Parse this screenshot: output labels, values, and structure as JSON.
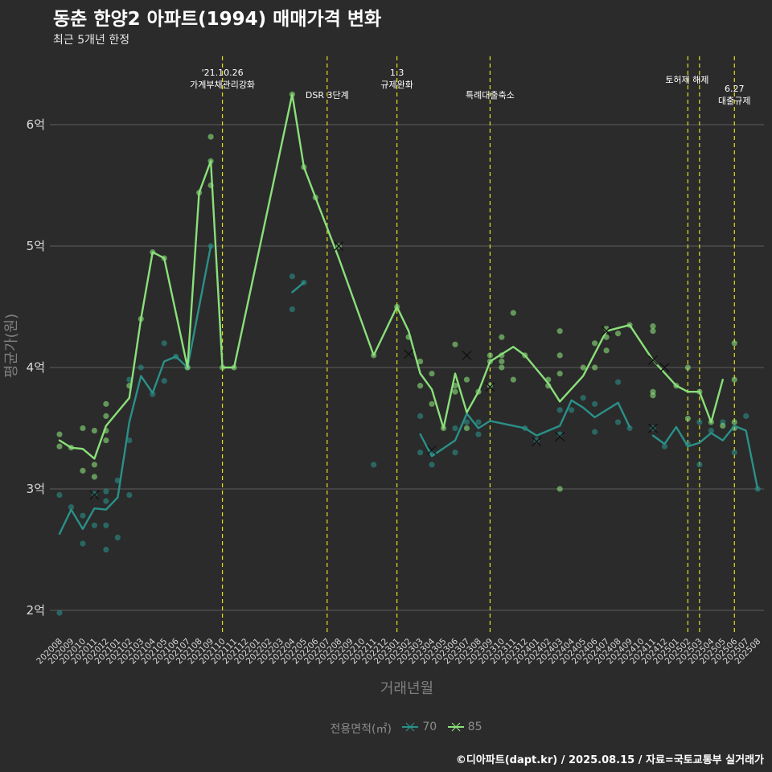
{
  "title": "동춘 한양2 아파트(1994) 매매가격 변화",
  "subtitle": "최근 5개년 한정",
  "caption": "©디아파트(dapt.kr) / 2025.08.15 / 자료=국토교통부 실거래가",
  "colors": {
    "background": "#2b2b2b",
    "grid": "#5c5c5c",
    "vline": "#e0e020",
    "series_70": "#2a9088",
    "series_85": "#8ae07a",
    "text": "#ffffff",
    "axis_text": "#d9d9d9",
    "axis_title": "#7f7f7f"
  },
  "legend": {
    "title": "전용면적(㎡)",
    "items": [
      {
        "label": "70",
        "color": "#2a9088"
      },
      {
        "label": "85",
        "color": "#8ae07a"
      }
    ]
  },
  "chart_data": {
    "type": "line",
    "title": "동춘 한양2 아파트(1994) 매매가격 변화",
    "subtitle": "최근 5개년 한정",
    "xlabel": "거래년월",
    "ylabel": "평균가(원)",
    "x": [
      "202008",
      "202009",
      "202010",
      "202011",
      "202012",
      "202101",
      "202102",
      "202103",
      "202104",
      "202105",
      "202106",
      "202107",
      "202108",
      "202109",
      "202110",
      "202111",
      "202112",
      "202201",
      "202202",
      "202203",
      "202204",
      "202205",
      "202206",
      "202207",
      "202208",
      "202209",
      "202210",
      "202211",
      "202212",
      "202301",
      "202302",
      "202303",
      "202304",
      "202305",
      "202306",
      "202307",
      "202308",
      "202309",
      "202310",
      "202311",
      "202312",
      "202401",
      "202402",
      "202403",
      "202404",
      "202405",
      "202406",
      "202407",
      "202408",
      "202409",
      "202410",
      "202411",
      "202412",
      "202501",
      "202502",
      "202503",
      "202504",
      "202505",
      "202506",
      "202507",
      "202508"
    ],
    "x_tick_labels": [
      "202008",
      "202009",
      "202010",
      "202011",
      "202012",
      "202101",
      "202102",
      "202103",
      "202104",
      "202105",
      "202106",
      "202107",
      "202108",
      "202109",
      "202110",
      "202111",
      "202112",
      "202201",
      "202202",
      "202203",
      "202204",
      "202205",
      "202206",
      "202207",
      "202208",
      "202209",
      "202210",
      "202211",
      "202212",
      "202301",
      "202302",
      "202303",
      "202304",
      "202305",
      "202306",
      "202307",
      "202308",
      "202309",
      "202310",
      "202311",
      "202312",
      "202401",
      "202402",
      "202403",
      "202404",
      "202405",
      "202406",
      "202407",
      "202408",
      "202409",
      "202410",
      "202411",
      "202412",
      "202501",
      "202502",
      "202503",
      "202504",
      "202505",
      "202506",
      "202507",
      "202508"
    ],
    "ylim": [
      1.8,
      6.7
    ],
    "y_ticks": [
      2,
      3,
      4,
      5,
      6
    ],
    "y_tick_labels": [
      "2억",
      "3억",
      "4억",
      "5억",
      "6억"
    ],
    "y_unit": "억원",
    "grid": "horizontal",
    "legend_position": "bottom",
    "series": [
      {
        "name": "70",
        "color": "#2a9088",
        "line": [
          [
            "202008",
            2.63
          ],
          [
            "202009",
            2.83
          ],
          [
            "202010",
            2.67
          ],
          [
            "202011",
            2.84
          ],
          [
            "202012",
            2.83
          ],
          [
            "202101",
            2.93
          ],
          [
            "202102",
            3.55
          ],
          [
            "202103",
            3.93
          ],
          [
            "202104",
            3.79
          ],
          [
            "202105",
            4.05
          ],
          [
            "202106",
            4.09
          ],
          [
            "202107",
            4.0
          ],
          [
            "202108",
            4.5
          ],
          [
            "202109",
            5.0
          ]
        ],
        "line2": [
          [
            "202204",
            4.62
          ],
          [
            "202205",
            4.7
          ]
        ],
        "line3": [
          [
            "202303",
            3.45
          ],
          [
            "202304",
            3.27
          ],
          [
            "202306",
            3.4
          ],
          [
            "202307",
            3.62
          ],
          [
            "202308",
            3.5
          ],
          [
            "202309",
            3.56
          ],
          [
            "202312",
            3.5
          ],
          [
            "202401",
            3.44
          ],
          [
            "202403",
            3.52
          ],
          [
            "202404",
            3.73
          ],
          [
            "202405",
            3.67
          ],
          [
            "202406",
            3.59
          ],
          [
            "202408",
            3.71
          ],
          [
            "202409",
            3.51
          ]
        ],
        "line4": [
          [
            "202411",
            3.44
          ],
          [
            "202412",
            3.37
          ],
          [
            "202501",
            3.51
          ],
          [
            "202502",
            3.35
          ],
          [
            "202503",
            3.38
          ],
          [
            "202504",
            3.46
          ],
          [
            "202505",
            3.4
          ],
          [
            "202506",
            3.52
          ],
          [
            "202507",
            3.48
          ],
          [
            "202508",
            3.0
          ]
        ],
        "points": [
          [
            "202008",
            2.95
          ],
          [
            "202008",
            1.98
          ],
          [
            "202009",
            2.85
          ],
          [
            "202010",
            2.78
          ],
          [
            "202010",
            2.55
          ],
          [
            "202011",
            2.96
          ],
          [
            "202011",
            2.7
          ],
          [
            "202012",
            2.98
          ],
          [
            "202012",
            2.9
          ],
          [
            "202012",
            2.7
          ],
          [
            "202012",
            2.5
          ],
          [
            "202101",
            3.07
          ],
          [
            "202101",
            2.6
          ],
          [
            "202102",
            3.9
          ],
          [
            "202102",
            3.4
          ],
          [
            "202102",
            2.95
          ],
          [
            "202103",
            4.0
          ],
          [
            "202104",
            3.78
          ],
          [
            "202105",
            4.2
          ],
          [
            "202105",
            3.89
          ],
          [
            "202106",
            4.09
          ],
          [
            "202107",
            4.0
          ],
          [
            "202109",
            5.0
          ],
          [
            "202204",
            4.75
          ],
          [
            "202204",
            4.48
          ],
          [
            "202205",
            4.7
          ],
          [
            "202211",
            3.2
          ],
          [
            "202303",
            3.6
          ],
          [
            "202303",
            3.3
          ],
          [
            "202304",
            3.2
          ],
          [
            "202304",
            3.3
          ],
          [
            "202306",
            3.3
          ],
          [
            "202306",
            3.5
          ],
          [
            "202307",
            3.55
          ],
          [
            "202308",
            3.45
          ],
          [
            "202308",
            3.55
          ],
          [
            "202312",
            3.5
          ],
          [
            "202401",
            3.4
          ],
          [
            "202403",
            3.45
          ],
          [
            "202403",
            3.65
          ],
          [
            "202404",
            3.65
          ],
          [
            "202405",
            3.75
          ],
          [
            "202406",
            3.7
          ],
          [
            "202406",
            3.47
          ],
          [
            "202408",
            3.55
          ],
          [
            "202408",
            3.88
          ],
          [
            "202409",
            3.5
          ],
          [
            "202411",
            3.5
          ],
          [
            "202412",
            3.35
          ],
          [
            "202502",
            3.37
          ],
          [
            "202503",
            3.55
          ],
          [
            "202503",
            3.2
          ],
          [
            "202504",
            3.48
          ],
          [
            "202505",
            3.55
          ],
          [
            "202506",
            3.3
          ],
          [
            "202507",
            3.6
          ],
          [
            "202508",
            3.0
          ]
        ],
        "cancelled": [
          [
            "202011",
            2.95
          ],
          [
            "202304",
            3.32
          ],
          [
            "202401",
            3.39
          ],
          [
            "202403",
            3.43
          ],
          [
            "202411",
            3.5
          ]
        ]
      },
      {
        "name": "85",
        "color": "#8ae07a",
        "line": [
          [
            "202008",
            3.4
          ],
          [
            "202009",
            3.34
          ],
          [
            "202010",
            3.33
          ],
          [
            "202011",
            3.25
          ],
          [
            "202012",
            3.52
          ],
          [
            "202102",
            3.75
          ],
          [
            "202103",
            4.4
          ],
          [
            "202104",
            4.95
          ],
          [
            "202105",
            4.9
          ],
          [
            "202107",
            4.0
          ],
          [
            "202108",
            5.44
          ],
          [
            "202109",
            5.7
          ],
          [
            "202110",
            4.0
          ],
          [
            "202111",
            4.0
          ],
          [
            "202204",
            6.25
          ],
          [
            "202205",
            5.65
          ],
          [
            "202206",
            5.4
          ],
          [
            "202208",
            4.9
          ],
          [
            "202211",
            4.1
          ],
          [
            "202301",
            4.5
          ],
          [
            "202302",
            4.3
          ],
          [
            "202303",
            3.95
          ],
          [
            "202304",
            3.82
          ],
          [
            "202305",
            3.5
          ],
          [
            "202306",
            3.95
          ],
          [
            "202307",
            3.63
          ],
          [
            "202308",
            3.8
          ],
          [
            "202309",
            4.05
          ],
          [
            "202311",
            4.17
          ],
          [
            "202312",
            4.1
          ],
          [
            "202402",
            3.87
          ],
          [
            "202403",
            3.72
          ],
          [
            "202405",
            3.93
          ],
          [
            "202407",
            4.3
          ],
          [
            "202409",
            4.35
          ],
          [
            "202411",
            4.06
          ],
          [
            "202501",
            3.85
          ],
          [
            "202502",
            3.8
          ],
          [
            "202503",
            3.8
          ],
          [
            "202504",
            3.55
          ],
          [
            "202505",
            3.9
          ]
        ],
        "points": [
          [
            "202008",
            3.45
          ],
          [
            "202008",
            3.35
          ],
          [
            "202009",
            3.34
          ],
          [
            "202010",
            3.5
          ],
          [
            "202010",
            3.15
          ],
          [
            "202011",
            3.48
          ],
          [
            "202011",
            3.2
          ],
          [
            "202011",
            3.1
          ],
          [
            "202012",
            3.7
          ],
          [
            "202012",
            3.6
          ],
          [
            "202012",
            3.48
          ],
          [
            "202012",
            3.4
          ],
          [
            "202102",
            3.85
          ],
          [
            "202103",
            4.4
          ],
          [
            "202104",
            4.95
          ],
          [
            "202105",
            4.9
          ],
          [
            "202107",
            4.0
          ],
          [
            "202108",
            5.44
          ],
          [
            "202109",
            5.9
          ],
          [
            "202109",
            5.7
          ],
          [
            "202109",
            5.5
          ],
          [
            "202110",
            4.0
          ],
          [
            "202111",
            4.0
          ],
          [
            "202204",
            6.25
          ],
          [
            "202205",
            5.65
          ],
          [
            "202206",
            5.4
          ],
          [
            "202208",
            5.0
          ],
          [
            "202211",
            4.1
          ],
          [
            "202301",
            4.5
          ],
          [
            "202302",
            4.25
          ],
          [
            "202303",
            4.05
          ],
          [
            "202303",
            3.85
          ],
          [
            "202304",
            3.95
          ],
          [
            "202304",
            3.7
          ],
          [
            "202305",
            3.5
          ],
          [
            "202306",
            4.19
          ],
          [
            "202306",
            3.85
          ],
          [
            "202306",
            3.8
          ],
          [
            "202307",
            3.9
          ],
          [
            "202307",
            3.5
          ],
          [
            "202308",
            3.8
          ],
          [
            "202309",
            4.1
          ],
          [
            "202309",
            4.05
          ],
          [
            "202309",
            3.85
          ],
          [
            "202310",
            4.25
          ],
          [
            "202310",
            4.1
          ],
          [
            "202310",
            4.05
          ],
          [
            "202310",
            4.0
          ],
          [
            "202311",
            4.45
          ],
          [
            "202311",
            3.9
          ],
          [
            "202312",
            4.1
          ],
          [
            "202402",
            3.9
          ],
          [
            "202402",
            3.85
          ],
          [
            "202403",
            4.3
          ],
          [
            "202403",
            4.1
          ],
          [
            "202403",
            3.95
          ],
          [
            "202403",
            3.0
          ],
          [
            "202405",
            4.0
          ],
          [
            "202406",
            4.2
          ],
          [
            "202406",
            4.0
          ],
          [
            "202407",
            4.32
          ],
          [
            "202407",
            4.25
          ],
          [
            "202407",
            4.14
          ],
          [
            "202408",
            4.28
          ],
          [
            "202409",
            4.35
          ],
          [
            "202411",
            4.34
          ],
          [
            "202411",
            4.3
          ],
          [
            "202411",
            3.8
          ],
          [
            "202411",
            3.77
          ],
          [
            "202501",
            3.85
          ],
          [
            "202502",
            4.0
          ],
          [
            "202502",
            3.58
          ],
          [
            "202503",
            3.8
          ],
          [
            "202504",
            3.55
          ],
          [
            "202505",
            3.52
          ],
          [
            "202506",
            4.2
          ],
          [
            "202506",
            3.9
          ],
          [
            "202506",
            3.55
          ],
          [
            "202506",
            3.5
          ]
        ],
        "cancelled": [
          [
            "202208",
            5.0
          ],
          [
            "202302",
            4.11
          ],
          [
            "202307",
            4.1
          ],
          [
            "202309",
            3.84
          ],
          [
            "202407",
            4.3
          ],
          [
            "202411",
            4.06
          ],
          [
            "202412",
            4.0
          ]
        ]
      }
    ],
    "annotations": [
      {
        "x": "202110",
        "lines": [
          "'21.10.26",
          "가계부채관리강화"
        ]
      },
      {
        "x": "202207",
        "lines": [
          "DSR 3단계"
        ]
      },
      {
        "x": "202301",
        "lines": [
          "1.3",
          "규제완화"
        ]
      },
      {
        "x": "202309",
        "lines": [
          "특례대출축소"
        ]
      },
      {
        "x": "202502",
        "lines": [
          "토허제 해제"
        ]
      },
      {
        "x": "202503",
        "lines": []
      },
      {
        "x": "202506",
        "lines": [
          "6.27",
          "대출규제"
        ]
      }
    ]
  }
}
